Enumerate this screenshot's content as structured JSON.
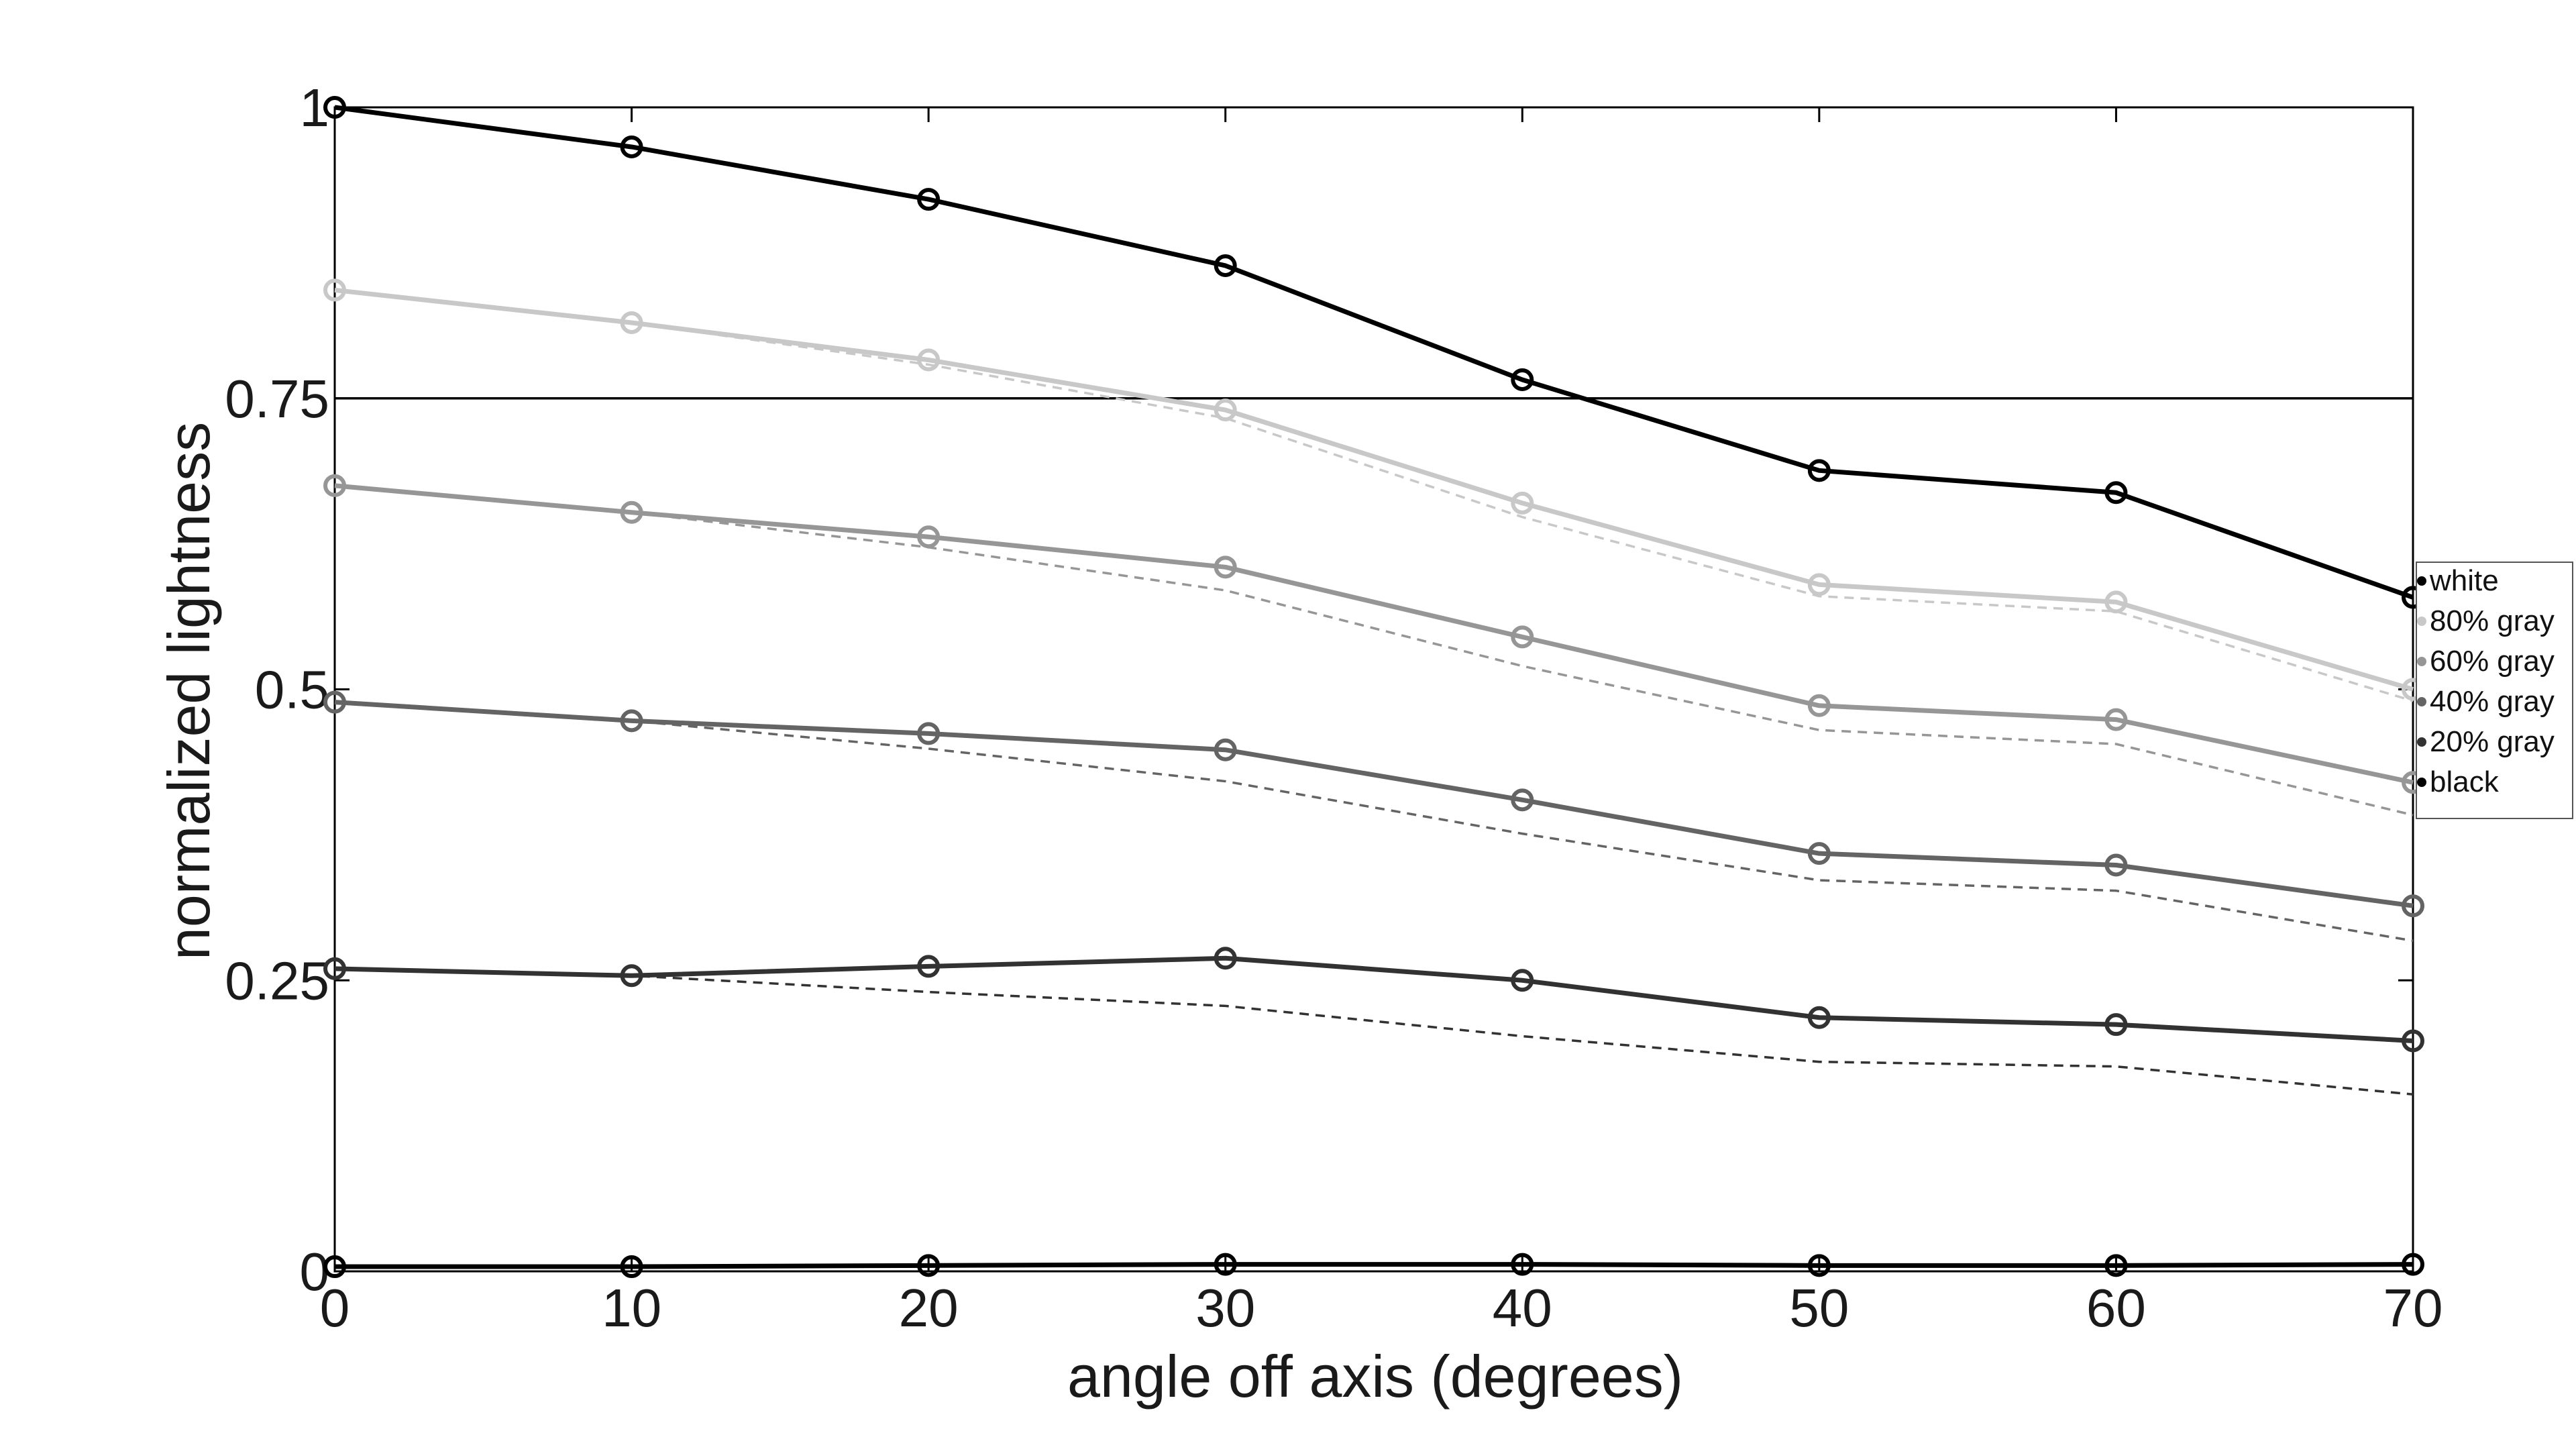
{
  "chart_data": {
    "type": "line",
    "title": "",
    "xlabel": "angle off axis (degrees)",
    "ylabel": "normalized lightness",
    "x": [
      0,
      10,
      20,
      30,
      40,
      50,
      60,
      70
    ],
    "xlim": [
      0,
      70
    ],
    "ylim": [
      0,
      1
    ],
    "xticks": [
      "0",
      "10",
      "20",
      "30",
      "40",
      "50",
      "60",
      "70"
    ],
    "yticks": [
      {
        "value": 0,
        "label": "0"
      },
      {
        "value": 0.25,
        "label": "0.25"
      },
      {
        "value": 0.5,
        "label": "0.5"
      },
      {
        "value": 0.75,
        "label": "0.75"
      },
      {
        "value": 1,
        "label": "1"
      }
    ],
    "reference_line": 0.75,
    "grid": false,
    "legend_position": "right",
    "series": [
      {
        "name": "white",
        "color": "#000000",
        "values": [
          1.0,
          0.966,
          0.921,
          0.864,
          0.766,
          0.688,
          0.669,
          0.579
        ]
      },
      {
        "name": "80% gray",
        "color": "#c8c8c8",
        "values": [
          0.843,
          0.815,
          0.783,
          0.74,
          0.66,
          0.59,
          0.575,
          0.5
        ],
        "dashed": [
          0.843,
          0.815,
          0.779,
          0.733,
          0.648,
          0.58,
          0.567,
          0.49
        ]
      },
      {
        "name": "60% gray",
        "color": "#969696",
        "values": [
          0.675,
          0.652,
          0.631,
          0.605,
          0.545,
          0.486,
          0.474,
          0.42
        ],
        "dashed": [
          0.675,
          0.652,
          0.622,
          0.585,
          0.52,
          0.465,
          0.453,
          0.392
        ]
      },
      {
        "name": "40% gray",
        "color": "#646464",
        "values": [
          0.489,
          0.473,
          0.462,
          0.448,
          0.405,
          0.359,
          0.349,
          0.314
        ],
        "dashed": [
          0.489,
          0.473,
          0.449,
          0.421,
          0.376,
          0.336,
          0.327,
          0.284
        ]
      },
      {
        "name": "20% gray",
        "color": "#323232",
        "values": [
          0.26,
          0.254,
          0.262,
          0.269,
          0.25,
          0.218,
          0.212,
          0.198
        ],
        "dashed": [
          0.26,
          0.254,
          0.24,
          0.228,
          0.202,
          0.18,
          0.176,
          0.152
        ]
      },
      {
        "name": "black",
        "color": "#000000",
        "values": [
          0.004,
          0.004,
          0.005,
          0.006,
          0.006,
          0.005,
          0.005,
          0.006
        ]
      }
    ]
  }
}
